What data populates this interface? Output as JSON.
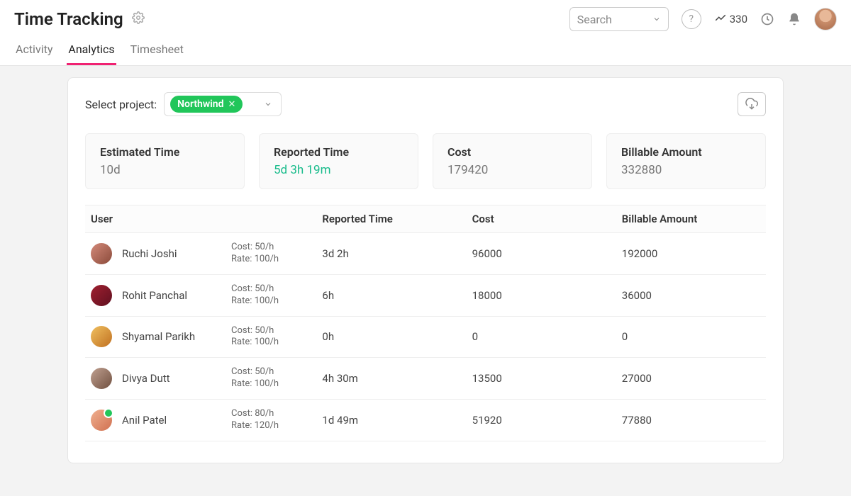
{
  "header": {
    "title": "Time Tracking",
    "search_placeholder": "Search",
    "karma_count": "330",
    "tabs": [
      {
        "label": "Activity",
        "active": false
      },
      {
        "label": "Analytics",
        "active": true
      },
      {
        "label": "Timesheet",
        "active": false
      }
    ]
  },
  "colors": {
    "accent_pink": "#f02272",
    "accent_green": "#1abc8c",
    "chip_green": "#21c65a",
    "border": "#e5e5e5",
    "bg": "#f3f3f3",
    "text": "#333333",
    "muted": "#777777"
  },
  "project": {
    "select_label": "Select project:",
    "selected": "Northwind"
  },
  "summary": [
    {
      "label": "Estimated Time",
      "value": "10d",
      "accent": false
    },
    {
      "label": "Reported Time",
      "value": "5d 3h 19m",
      "accent": true
    },
    {
      "label": "Cost",
      "value": "179420",
      "accent": false
    },
    {
      "label": "Billable Amount",
      "value": "332880",
      "accent": false
    }
  ],
  "table": {
    "columns": [
      "User",
      "Reported Time",
      "Cost",
      "Billable Amount"
    ],
    "rows": [
      {
        "name": "Ruchi Joshi",
        "cost_rate": "Cost: 50/h",
        "bill_rate": "Rate: 100/h",
        "reported": "3d 2h",
        "cost": "96000",
        "billable": "192000",
        "avatar": "av1",
        "online": false
      },
      {
        "name": "Rohit Panchal",
        "cost_rate": "Cost: 50/h",
        "bill_rate": "Rate: 100/h",
        "reported": "6h",
        "cost": "18000",
        "billable": "36000",
        "avatar": "av2",
        "online": false
      },
      {
        "name": "Shyamal Parikh",
        "cost_rate": "Cost: 50/h",
        "bill_rate": "Rate: 100/h",
        "reported": "0h",
        "cost": "0",
        "billable": "0",
        "avatar": "av3",
        "online": false
      },
      {
        "name": "Divya Dutt",
        "cost_rate": "Cost: 50/h",
        "bill_rate": "Rate: 100/h",
        "reported": "4h 30m",
        "cost": "13500",
        "billable": "27000",
        "avatar": "av4",
        "online": false
      },
      {
        "name": "Anil Patel",
        "cost_rate": "Cost: 80/h",
        "bill_rate": "Rate: 120/h",
        "reported": "1d 49m",
        "cost": "51920",
        "billable": "77880",
        "avatar": "av5",
        "online": true
      }
    ]
  }
}
